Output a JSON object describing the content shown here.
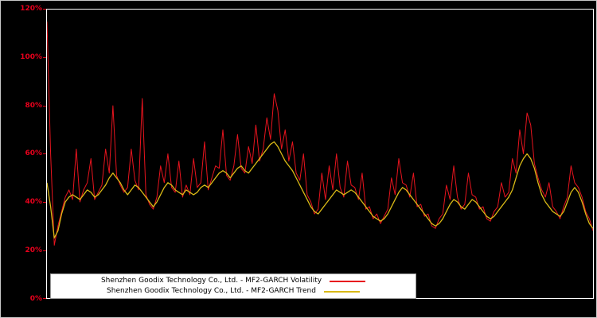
{
  "chart": {
    "background": "#000000",
    "frame_color": "#ffffff",
    "tick_label_color": "#e8001c",
    "legend_background": "#ffffff"
  },
  "chart_data": {
    "type": "line",
    "title": "",
    "xlabel": "",
    "ylabel": "",
    "ylim": [
      0,
      120
    ],
    "grid": false,
    "legend_position": "bottom-center",
    "y_ticks": [
      "120%",
      "100%",
      "80%",
      "60%",
      "40%",
      "20%",
      "0%"
    ],
    "series": [
      {
        "name": "Shenzhen Goodix Technology Co., Ltd. - MF2-GARCH Volatility",
        "color": "#e8141e",
        "values": [
          115,
          60,
          22,
          30,
          36,
          42,
          45,
          41,
          62,
          40,
          45,
          48,
          58,
          41,
          44,
          47,
          62,
          52,
          80,
          51,
          47,
          44,
          46,
          62,
          49,
          45,
          83,
          43,
          39,
          37,
          42,
          55,
          48,
          60,
          46,
          44,
          57,
          42,
          47,
          43,
          58,
          46,
          48,
          65,
          45,
          50,
          55,
          54,
          70,
          51,
          49,
          55,
          68,
          54,
          52,
          63,
          56,
          72,
          57,
          62,
          75,
          66,
          85,
          78,
          62,
          70,
          57,
          65,
          52,
          49,
          60,
          43,
          40,
          35,
          37,
          52,
          41,
          55,
          45,
          60,
          46,
          42,
          57,
          47,
          46,
          41,
          52,
          37,
          38,
          33,
          35,
          31,
          34,
          37,
          50,
          43,
          58,
          48,
          47,
          42,
          52,
          38,
          39,
          34,
          35,
          30,
          29,
          33,
          35,
          47,
          41,
          55,
          42,
          37,
          39,
          52,
          43,
          42,
          37,
          38,
          33,
          32,
          36,
          38,
          48,
          42,
          44,
          58,
          52,
          70,
          60,
          77,
          72,
          56,
          50,
          45,
          42,
          48,
          38,
          36,
          33,
          38,
          42,
          55,
          48,
          46,
          42,
          36,
          33,
          28
        ]
      },
      {
        "name": "Shenzhen Goodix Technology Co., Ltd. - MF2-GARCH Trend",
        "color": "#d9b916",
        "values": [
          48,
          38,
          25,
          28,
          35,
          40,
          42,
          43,
          42,
          41,
          43,
          45,
          44,
          42,
          43,
          45,
          47,
          50,
          52,
          50,
          48,
          45,
          43,
          45,
          47,
          46,
          44,
          42,
          40,
          38,
          40,
          43,
          46,
          48,
          47,
          45,
          44,
          43,
          45,
          44,
          43,
          44,
          46,
          47,
          46,
          48,
          50,
          52,
          53,
          52,
          50,
          52,
          54,
          55,
          53,
          52,
          54,
          56,
          58,
          60,
          62,
          64,
          65,
          63,
          60,
          57,
          55,
          53,
          50,
          47,
          44,
          41,
          38,
          36,
          35,
          37,
          39,
          41,
          43,
          45,
          44,
          43,
          44,
          45,
          44,
          42,
          40,
          38,
          36,
          34,
          33,
          32,
          33,
          35,
          38,
          41,
          44,
          46,
          45,
          43,
          41,
          39,
          37,
          35,
          33,
          31,
          30,
          31,
          33,
          36,
          39,
          41,
          40,
          38,
          37,
          39,
          41,
          40,
          38,
          36,
          34,
          33,
          34,
          36,
          38,
          40,
          42,
          45,
          50,
          55,
          58,
          60,
          58,
          54,
          48,
          43,
          40,
          38,
          36,
          35,
          34,
          36,
          40,
          44,
          46,
          44,
          40,
          35,
          31,
          29
        ]
      }
    ]
  }
}
